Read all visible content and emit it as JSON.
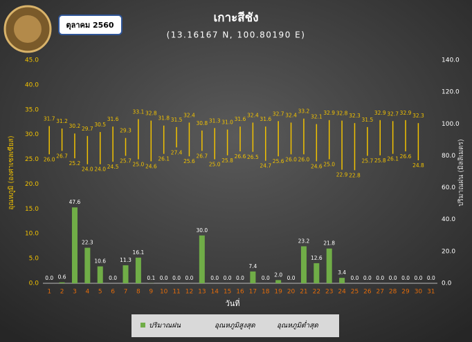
{
  "chart_data": {
    "type": "bar",
    "title": "เกาะสีชัง",
    "subtitle": "(13.16167 N, 100.80190 E)",
    "date_label": "ตุลาคม 2560",
    "x_label": "วันที่",
    "y_label": "อุณหภูมิ (องศาเซลเซียส)",
    "y2_label": "ปริมาณฝน (มิลลิเมตร)",
    "categories": [
      "1",
      "2",
      "3",
      "4",
      "5",
      "6",
      "7",
      "8",
      "9",
      "10",
      "11",
      "12",
      "13",
      "14",
      "15",
      "16",
      "17",
      "18",
      "19",
      "20",
      "21",
      "22",
      "23",
      "24",
      "25",
      "26",
      "27",
      "28",
      "29",
      "30",
      "31"
    ],
    "series": [
      {
        "name": "ปริมาณฝน",
        "color": "#70ad47",
        "axis": "y2",
        "values": [
          0,
          0.6,
          47.6,
          22.3,
          10.6,
          0,
          11.3,
          16.1,
          0.1,
          0,
          0,
          0,
          30,
          0,
          0,
          0,
          7.4,
          0,
          2,
          0,
          23.2,
          12.6,
          21.8,
          3.4,
          0,
          0,
          0,
          0,
          0,
          0,
          0
        ],
        "value_labels": [
          "0.0",
          "0.6",
          "47.6",
          "22.3",
          "10.6",
          "0.0",
          "11.3",
          "16.1",
          "0.1",
          "0.0",
          "0.0",
          "0.0",
          "30.0",
          "0.0",
          "0.0",
          "0.0",
          "7.4",
          "0.0",
          "2.0",
          "0.0",
          "23.2",
          "12.6",
          "21.8",
          "3.4",
          "0.0",
          "0.0",
          "0.0",
          "0.0",
          "0.0",
          "0.0",
          "0.0"
        ]
      },
      {
        "name": "อุณหภูมิสูงสุด",
        "color": "#f2c200",
        "values": [
          31.7,
          31.2,
          30.2,
          29.7,
          30.5,
          31.6,
          29.3,
          33.1,
          32.8,
          31.8,
          31.5,
          32.4,
          30.8,
          31.3,
          31,
          31.6,
          32.4,
          31.6,
          32.7,
          32.4,
          33.2,
          32.1,
          32.9,
          32.8,
          32.3,
          31.5,
          32.9,
          32.7,
          32.9,
          32.3,
          null
        ],
        "value_labels": [
          "31.7",
          "31.2",
          "30.2",
          "29.7",
          "30.5",
          "31.6",
          "29.3",
          "33.1",
          "32.8",
          "31.8",
          "31.5",
          "32.4",
          "30.8",
          "31.3",
          "31.0",
          "31.6",
          "32.4",
          "31.6",
          "32.7",
          "32.4",
          "33.2",
          "32.1",
          "32.9",
          "32.8",
          "32.3",
          "31.5",
          "32.9",
          "32.7",
          "32.9",
          "32.3",
          null
        ]
      },
      {
        "name": "อุณหภูมิต่ำสุด",
        "color": "#f2c200",
        "values": [
          26,
          26.7,
          25.2,
          24,
          24,
          24.5,
          25.7,
          25,
          24.6,
          26.1,
          27.4,
          25.6,
          26.7,
          25,
          25.8,
          26.6,
          26.5,
          24.7,
          25.6,
          26,
          26,
          24.6,
          25,
          22.9,
          22.8,
          25.7,
          25.8,
          26.1,
          26.6,
          24.8,
          null
        ],
        "value_labels": [
          "26.0",
          "26.7",
          "25.2",
          "24.0",
          "24.0",
          "24.5",
          "25.7",
          "25.0",
          "24.6",
          "26.1",
          "27.4",
          "25.6",
          "26.7",
          "25.0",
          "25.8",
          "26.6",
          "26.5",
          "24.7",
          "25.6",
          "26.0",
          "26.0",
          "24.6",
          "25.0",
          "22.9",
          "22.8",
          "25.7",
          "25.8",
          "26.1",
          "26.6",
          "24.8",
          null
        ]
      }
    ],
    "ylim": [
      0,
      45
    ],
    "yticks": [
      {
        "value": 0,
        "label": "0.0"
      },
      {
        "value": 5,
        "label": "5.0"
      },
      {
        "value": 10,
        "label": "10.0"
      },
      {
        "value": 15,
        "label": "15.0"
      },
      {
        "value": 20,
        "label": "20.0"
      },
      {
        "value": 25,
        "label": "25.0"
      },
      {
        "value": 30,
        "label": "30.0"
      },
      {
        "value": 35,
        "label": "35.0"
      },
      {
        "value": 40,
        "label": "40.0"
      },
      {
        "value": 45,
        "label": "45.0"
      }
    ],
    "y2lim": [
      0,
      140
    ],
    "y2ticks": [
      {
        "value": 0,
        "label": "0.0"
      },
      {
        "value": 20,
        "label": "20.0"
      },
      {
        "value": 40,
        "label": "40.0"
      },
      {
        "value": 60,
        "label": "60.0"
      },
      {
        "value": 80,
        "label": "80.0"
      },
      {
        "value": 100,
        "label": "100.0"
      },
      {
        "value": 120,
        "label": "120.0"
      },
      {
        "value": 140,
        "label": "140.0"
      }
    ]
  }
}
